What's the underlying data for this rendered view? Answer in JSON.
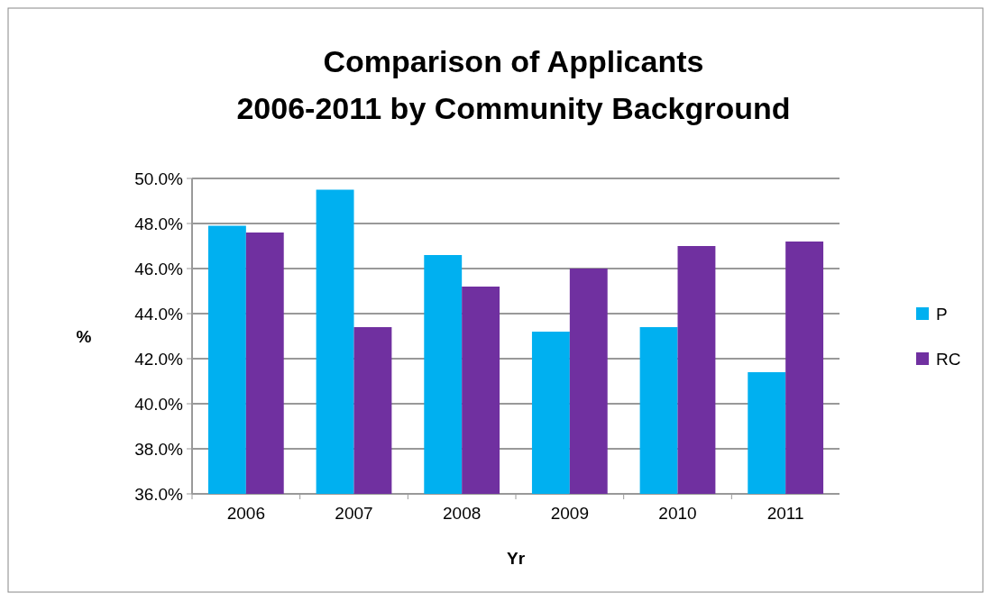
{
  "chart_data": {
    "type": "bar",
    "title": "Comparison of Applicants\n2006-2011 by Community Background",
    "xlabel": "Yr",
    "ylabel": "%",
    "categories": [
      "2006",
      "2007",
      "2008",
      "2009",
      "2010",
      "2011"
    ],
    "series": [
      {
        "name": "P",
        "color": "#00b0f0",
        "values": [
          47.9,
          49.5,
          46.6,
          43.2,
          43.4,
          41.4
        ]
      },
      {
        "name": "RC",
        "color": "#7030a0",
        "values": [
          47.6,
          43.4,
          45.2,
          46.0,
          47.0,
          47.2
        ]
      }
    ],
    "ylim": [
      36,
      50
    ],
    "yticks": [
      {
        "value": 36,
        "label": "36.0%"
      },
      {
        "value": 38,
        "label": "38.0%"
      },
      {
        "value": 40,
        "label": "40.0%"
      },
      {
        "value": 42,
        "label": "42.0%"
      },
      {
        "value": 44,
        "label": "44.0%"
      },
      {
        "value": 46,
        "label": "46.0%"
      },
      {
        "value": 48,
        "label": "48.0%"
      },
      {
        "value": 50,
        "label": "50.0%"
      }
    ],
    "grid": "y",
    "legend": "right"
  }
}
